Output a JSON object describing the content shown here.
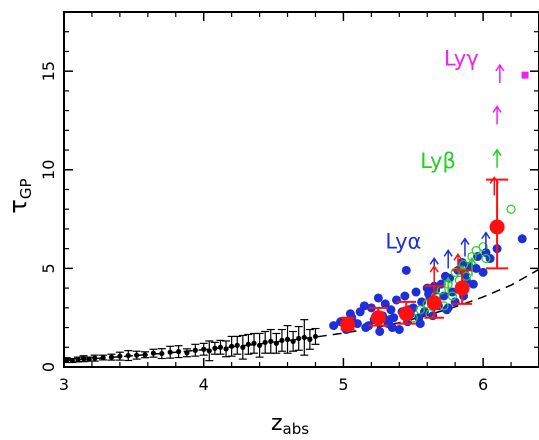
{
  "chart_data": {
    "type": "scatter",
    "title": "",
    "xlabel": "z",
    "xlabel_sub": "abs",
    "ylabel": "τ",
    "ylabel_sub": "GP",
    "xlim": [
      3.0,
      6.4
    ],
    "ylim": [
      0,
      18
    ],
    "xticks": [
      3,
      4,
      5,
      6
    ],
    "yticks": [
      0,
      5,
      10,
      15
    ],
    "grid": false,
    "legend": "none",
    "colors": {
      "lya": "#1f2fd8",
      "lyb": "#22d022",
      "lyg": "#f020f0",
      "binned": "#ff1010",
      "lowz": "#000000"
    },
    "annotations": [
      {
        "text": "Lyγ",
        "x": 5.72,
        "y": 15.3,
        "color": "#f020f0"
      },
      {
        "text": "Lyβ",
        "x": 5.55,
        "y": 10.1,
        "color": "#22d022"
      },
      {
        "text": "Lyα",
        "x": 5.3,
        "y": 6.0,
        "color": "#1f2fd8"
      }
    ],
    "series": [
      {
        "marker": "line-dashed",
        "color": "#000000",
        "x": [
          3.0,
          3.2,
          3.4,
          3.6,
          3.8,
          4.0,
          4.2,
          4.4,
          4.6,
          4.8,
          5.0,
          5.2,
          5.4,
          5.6,
          5.8,
          6.0,
          6.2,
          6.4
        ],
        "y": [
          0.33,
          0.42,
          0.52,
          0.63,
          0.75,
          0.88,
          1.02,
          1.17,
          1.34,
          1.52,
          1.72,
          1.95,
          2.25,
          2.62,
          3.05,
          3.55,
          4.15,
          4.95
        ]
      },
      {
        "marker": "errorbar-small",
        "color": "#000000",
        "x": [
          3.02,
          3.06,
          3.1,
          3.14,
          3.18,
          3.22,
          3.28,
          3.34,
          3.4,
          3.46,
          3.52,
          3.58,
          3.64,
          3.7,
          3.76,
          3.82,
          3.88,
          3.94,
          4.0,
          4.04,
          4.08,
          4.12,
          4.16,
          4.2,
          4.24,
          4.28,
          4.32,
          4.36,
          4.4,
          4.44,
          4.48,
          4.52,
          4.56,
          4.6,
          4.64,
          4.68,
          4.72,
          4.76,
          4.8
        ],
        "y": [
          0.35,
          0.33,
          0.38,
          0.42,
          0.4,
          0.45,
          0.48,
          0.5,
          0.55,
          0.58,
          0.6,
          0.62,
          0.7,
          0.68,
          0.75,
          0.78,
          0.72,
          0.85,
          0.9,
          0.82,
          0.95,
          1.0,
          0.92,
          1.05,
          1.1,
          1.0,
          1.15,
          1.2,
          1.1,
          1.25,
          1.3,
          1.2,
          1.35,
          1.4,
          1.3,
          1.45,
          1.5,
          1.4,
          1.55
        ],
        "yerr": [
          0.12,
          0.1,
          0.12,
          0.15,
          0.1,
          0.15,
          0.12,
          0.15,
          0.2,
          0.25,
          0.2,
          0.15,
          0.2,
          0.25,
          0.3,
          0.3,
          0.2,
          0.3,
          0.3,
          0.5,
          0.3,
          0.35,
          0.4,
          0.5,
          0.45,
          0.6,
          0.5,
          0.5,
          0.6,
          0.55,
          0.6,
          0.5,
          0.55,
          0.7,
          0.5,
          0.6,
          0.9,
          0.5,
          0.4
        ]
      },
      {
        "marker": "circle-filled",
        "color": "#1f2fd8",
        "x": [
          4.93,
          4.98,
          5.02,
          5.06,
          5.1,
          5.12,
          5.16,
          5.2,
          5.22,
          5.26,
          5.28,
          5.3,
          5.32,
          5.34,
          5.36,
          5.38,
          5.4,
          5.42,
          5.44,
          5.46,
          5.48,
          5.5,
          5.52,
          5.54,
          5.56,
          5.58,
          5.6,
          5.62,
          5.64,
          5.66,
          5.68,
          5.7,
          5.72,
          5.74,
          5.76,
          5.78,
          5.8,
          5.82,
          5.84,
          5.86,
          5.88,
          5.9,
          5.93,
          5.96,
          6.0,
          6.05,
          6.1,
          6.28,
          5.05,
          5.15,
          5.25,
          5.35,
          5.45,
          5.55,
          5.65,
          5.75,
          5.85,
          5.95,
          5.18,
          5.33,
          5.47,
          5.61,
          5.73,
          5.87,
          6.02
        ],
        "y": [
          2.1,
          2.3,
          1.9,
          2.5,
          2.2,
          2.8,
          2.0,
          3.0,
          2.4,
          1.8,
          2.6,
          3.2,
          2.2,
          2.9,
          2.5,
          3.4,
          1.9,
          2.8,
          3.6,
          2.3,
          2.7,
          3.0,
          3.8,
          2.5,
          3.3,
          2.8,
          4.0,
          3.5,
          2.6,
          3.9,
          3.1,
          4.2,
          3.6,
          2.9,
          4.5,
          3.8,
          3.3,
          4.9,
          4.0,
          3.6,
          4.4,
          5.1,
          4.2,
          5.6,
          4.8,
          5.5,
          6.0,
          6.5,
          2.7,
          3.1,
          3.5,
          2.0,
          4.9,
          2.2,
          4.1,
          3.0,
          5.3,
          5.0,
          2.1,
          2.4,
          2.9,
          3.7,
          4.6,
          4.7,
          5.8
        ]
      },
      {
        "marker": "circle-open",
        "color": "#22d022",
        "x": [
          5.5,
          5.55,
          5.6,
          5.62,
          5.66,
          5.7,
          5.72,
          5.75,
          5.78,
          5.8,
          5.83,
          5.86,
          5.88,
          5.92,
          5.95,
          6.0,
          6.02,
          6.2
        ],
        "y": [
          2.5,
          2.9,
          3.2,
          2.7,
          3.6,
          3.9,
          3.1,
          4.2,
          3.6,
          4.8,
          4.4,
          5.2,
          4.6,
          5.6,
          5.9,
          6.1,
          5.5,
          8.0
        ]
      },
      {
        "marker": "arrow-up",
        "color": "#1f2fd8",
        "x": [
          5.65,
          5.75,
          5.87,
          6.02
        ],
        "y": [
          4.6,
          5.0,
          5.6,
          5.9
        ]
      },
      {
        "marker": "arrow-up",
        "color": "#ff1010",
        "x": [
          5.65,
          5.82,
          6.08
        ],
        "y": [
          4.2,
          4.8,
          8.7
        ]
      },
      {
        "marker": "arrow-up",
        "color": "#22d022",
        "x": [
          5.75,
          5.85,
          5.92,
          6.1
        ],
        "y": [
          3.6,
          4.2,
          4.6,
          10.1
        ]
      },
      {
        "marker": "arrow-up",
        "color": "#f020f0",
        "x": [
          6.1,
          6.12
        ],
        "y": [
          12.3,
          14.4
        ]
      },
      {
        "marker": "square",
        "color": "#f020f0",
        "x": [
          6.3
        ],
        "y": [
          14.8
        ]
      },
      {
        "marker": "circle-big-errorbar",
        "color": "#ff1010",
        "x": [
          5.03,
          5.25,
          5.45,
          5.65,
          5.85,
          6.1
        ],
        "y": [
          2.15,
          2.5,
          2.7,
          3.25,
          4.0,
          7.1
        ],
        "ylo": [
          1.9,
          2.1,
          2.2,
          2.5,
          3.2,
          5.0
        ],
        "yhi": [
          2.5,
          3.0,
          3.3,
          4.1,
          4.9,
          9.5
        ],
        "xerr": [
          0.05,
          0.07,
          0.07,
          0.07,
          0.07,
          0.08
        ]
      }
    ]
  }
}
